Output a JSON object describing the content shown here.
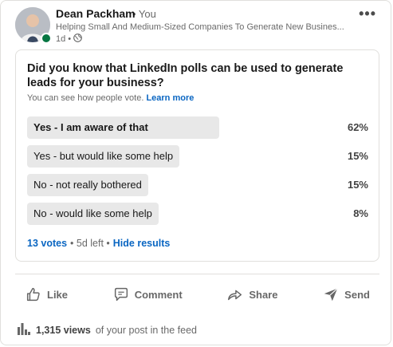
{
  "author": {
    "name": "Dean Packham",
    "relation": "• You",
    "headline": "Helping Small And Medium-Sized Companies To Generate New Busines...",
    "time": "1d •",
    "visibility_icon": "globe-icon"
  },
  "overflow_label": "•••",
  "poll": {
    "question": "Did you know that LinkedIn polls can be used to generate leads for your business?",
    "note": "You can see how people vote.",
    "learn_more": "Learn more",
    "options": [
      {
        "label": "Yes - I am aware of that",
        "percent": "62%",
        "value": 62,
        "selected": true
      },
      {
        "label": "Yes - but would like some help",
        "percent": "15%",
        "value": 15,
        "selected": false
      },
      {
        "label": "No - not really bothered",
        "percent": "15%",
        "value": 15,
        "selected": false
      },
      {
        "label": "No - would like some help",
        "percent": "8%",
        "value": 8,
        "selected": false
      }
    ],
    "votes": "13 votes",
    "time_left": "• 5d left •",
    "hide_results": "Hide results"
  },
  "actions": {
    "like": "Like",
    "comment": "Comment",
    "share": "Share",
    "send": "Send"
  },
  "views": {
    "count": "1,315 views",
    "suffix": "of your post in the feed"
  },
  "colors": {
    "link": "#0a66c2",
    "bar": "#e8e8e8",
    "presence": "#057642"
  }
}
